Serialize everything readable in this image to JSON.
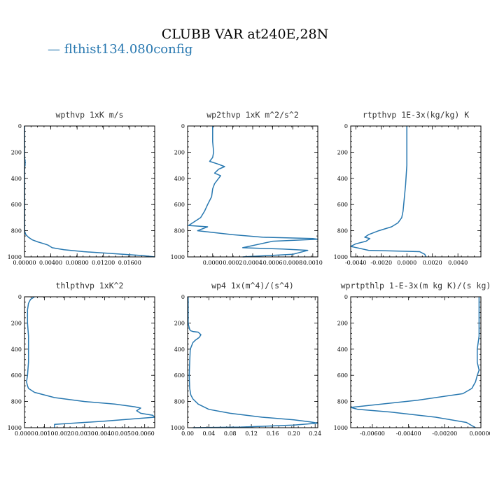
{
  "figure": {
    "title": "CLUBB VAR at240E,28N",
    "legend_label": "— flthist134.080config",
    "series_color": "#2878b0"
  },
  "chart_data": [
    {
      "type": "line",
      "title": "wpthvp   1xK m/s",
      "xlim": [
        0,
        0.0198
      ],
      "ylim": [
        1000,
        0
      ],
      "xticks": [
        0,
        0.004,
        0.008,
        0.012,
        0.016
      ],
      "xtick_labels": [
        "0.00000",
        "0.00400",
        "0.00800",
        "0.01200",
        "0.01600"
      ],
      "yticks": [
        0,
        200,
        400,
        600,
        800,
        1000
      ],
      "series": [
        {
          "x": [
            0,
            0,
            0.0001,
            0.0001,
            0,
            0,
            0,
            0,
            0.0002,
            0.0006,
            0.0012,
            0.002,
            0.003,
            0.0036,
            0.0042,
            0.006,
            0.009,
            0.012,
            0.015,
            0.018,
            0.0198
          ],
          "y": [
            0,
            250,
            260,
            300,
            320,
            600,
            760,
            800,
            830,
            850,
            870,
            885,
            900,
            910,
            930,
            945,
            960,
            970,
            980,
            990,
            1000
          ]
        }
      ]
    },
    {
      "type": "line",
      "title": "wp2thvp   1xK m^2/s^2",
      "xlim": [
        -0.00025,
        0.00105
      ],
      "ylim": [
        1000,
        0
      ],
      "xticks": [
        0,
        0.0002,
        0.0004,
        0.0006,
        0.0008,
        0.001
      ],
      "xtick_labels": [
        "0.0000",
        "0.0002",
        "0.0004",
        "0.0006",
        "0.0008",
        "0.0010"
      ],
      "yticks": [
        0,
        200,
        400,
        600,
        800,
        1000
      ],
      "series": [
        {
          "x": [
            0,
            0,
            1e-05,
            0,
            -3e-05,
            5e-05,
            0.00012,
            6e-05,
            2e-05,
            8e-05,
            5e-05,
            2e-05,
            0,
            -1e-05,
            -5e-05,
            -8e-05,
            -0.00012,
            -0.00018,
            -0.00024,
            -5e-05,
            -0.00015,
            0.0002,
            0.0005,
            0.001,
            0.00105,
            0.0006,
            0.0003,
            0.0007,
            0.00095,
            0.0008,
            0.0003
          ],
          "y": [
            0,
            120,
            200,
            240,
            270,
            290,
            310,
            330,
            360,
            380,
            410,
            440,
            480,
            540,
            600,
            650,
            700,
            730,
            760,
            770,
            800,
            830,
            850,
            860,
            865,
            880,
            930,
            940,
            950,
            980,
            1000
          ]
        }
      ]
    },
    {
      "type": "line",
      "title": "rtpthvp   1E-3x(kg/kg) K",
      "xlim": [
        -0.0044,
        0.0058
      ],
      "ylim": [
        1000,
        0
      ],
      "xticks": [
        -0.004,
        -0.002,
        0,
        0.002,
        0.004
      ],
      "xtick_labels": [
        "-0.0040",
        "-0.0020",
        "0.0000",
        "0.0020",
        "0.0040"
      ],
      "yticks": [
        0,
        200,
        400,
        600,
        800,
        1000
      ],
      "series": [
        {
          "x": [
            0,
            0,
            -0.0001,
            -0.0002,
            -0.0003,
            -0.0004,
            -0.0007,
            -0.0012,
            -0.0022,
            -0.003,
            -0.0033,
            -0.0029,
            -0.0032,
            -0.004,
            -0.0044,
            -0.003,
            0.001,
            0.0014,
            0.0015
          ],
          "y": [
            0,
            300,
            450,
            550,
            650,
            700,
            740,
            770,
            800,
            830,
            850,
            860,
            880,
            900,
            920,
            950,
            960,
            980,
            1000
          ]
        }
      ]
    },
    {
      "type": "line",
      "title": "thlpthvp   1xK^2",
      "xlim": [
        0,
        0.0065
      ],
      "ylim": [
        1000,
        0
      ],
      "xticks": [
        0,
        0.001,
        0.002,
        0.003,
        0.004,
        0.005,
        0.006
      ],
      "xtick_labels": [
        "0.0000",
        "0.0010",
        "0.0020",
        "0.0030",
        "0.0040",
        "0.0050",
        "0.0060"
      ],
      "yticks": [
        0,
        200,
        400,
        600,
        800,
        1000
      ],
      "series": [
        {
          "x": [
            0.0005,
            0.0003,
            0.0002,
            0.00015,
            0.00015,
            0.0002,
            0.0002,
            0.0002,
            0.00015,
            0.0001,
            0.00015,
            0.0002,
            0.0005,
            0.0015,
            0.003,
            0.0045,
            0.0055,
            0.0058,
            0.0056,
            0.0058,
            0.0064,
            0.0065,
            0.004,
            0.0015,
            0.0015
          ],
          "y": [
            0,
            20,
            50,
            100,
            200,
            300,
            400,
            500,
            600,
            650,
            680,
            700,
            730,
            770,
            800,
            820,
            840,
            850,
            870,
            890,
            905,
            920,
            950,
            975,
            1000
          ]
        }
      ]
    },
    {
      "type": "line",
      "title": "wp4   1x(m^4)/(s^4)",
      "xlim": [
        0,
        0.245
      ],
      "ylim": [
        1000,
        0
      ],
      "xticks": [
        0,
        0.04,
        0.08,
        0.12,
        0.16,
        0.2,
        0.24
      ],
      "xtick_labels": [
        "0.00",
        "0.04",
        "0.08",
        "0.12",
        "0.16",
        "0.20",
        "0.24"
      ],
      "yticks": [
        0,
        200,
        400,
        600,
        800,
        1000
      ],
      "series": [
        {
          "x": [
            0.001,
            0.001,
            0.001,
            0.002,
            0.004,
            0.006,
            0.01,
            0.02,
            0.025,
            0.022,
            0.015,
            0.01,
            0.005,
            0.004,
            0.003,
            0.004,
            0.006,
            0.01,
            0.02,
            0.04,
            0.08,
            0.14,
            0.2,
            0.23,
            0.245,
            0.2,
            0.1,
            0.01
          ],
          "y": [
            0,
            100,
            200,
            220,
            250,
            260,
            265,
            270,
            290,
            310,
            330,
            350,
            400,
            500,
            600,
            700,
            750,
            780,
            820,
            860,
            890,
            920,
            940,
            955,
            965,
            980,
            995,
            1000
          ]
        }
      ]
    },
    {
      "type": "line",
      "title": "wprtpthlp   1-E-3x(m kg K)/(s kg)",
      "xlim": [
        -0.0072,
        0
      ],
      "ylim": [
        1000,
        0
      ],
      "xticks": [
        -0.006,
        -0.004,
        -0.002,
        0
      ],
      "xtick_labels": [
        "-0.00600",
        "-0.00400",
        "-0.00200",
        "0.00000"
      ],
      "yticks": [
        0,
        200,
        400,
        600,
        800,
        1000
      ],
      "series": [
        {
          "x": [
            -0.0001,
            -0.0001,
            -0.0001,
            -0.0002,
            -0.0002,
            -0.0001,
            -0.0002,
            -0.0003,
            -0.0005,
            -0.001,
            -0.0035,
            -0.0072,
            -0.0068,
            -0.005,
            -0.0025,
            -0.0008,
            -0.0003
          ],
          "y": [
            0,
            150,
            300,
            400,
            500,
            560,
            600,
            650,
            700,
            740,
            790,
            845,
            860,
            880,
            920,
            960,
            1000
          ]
        }
      ]
    }
  ]
}
